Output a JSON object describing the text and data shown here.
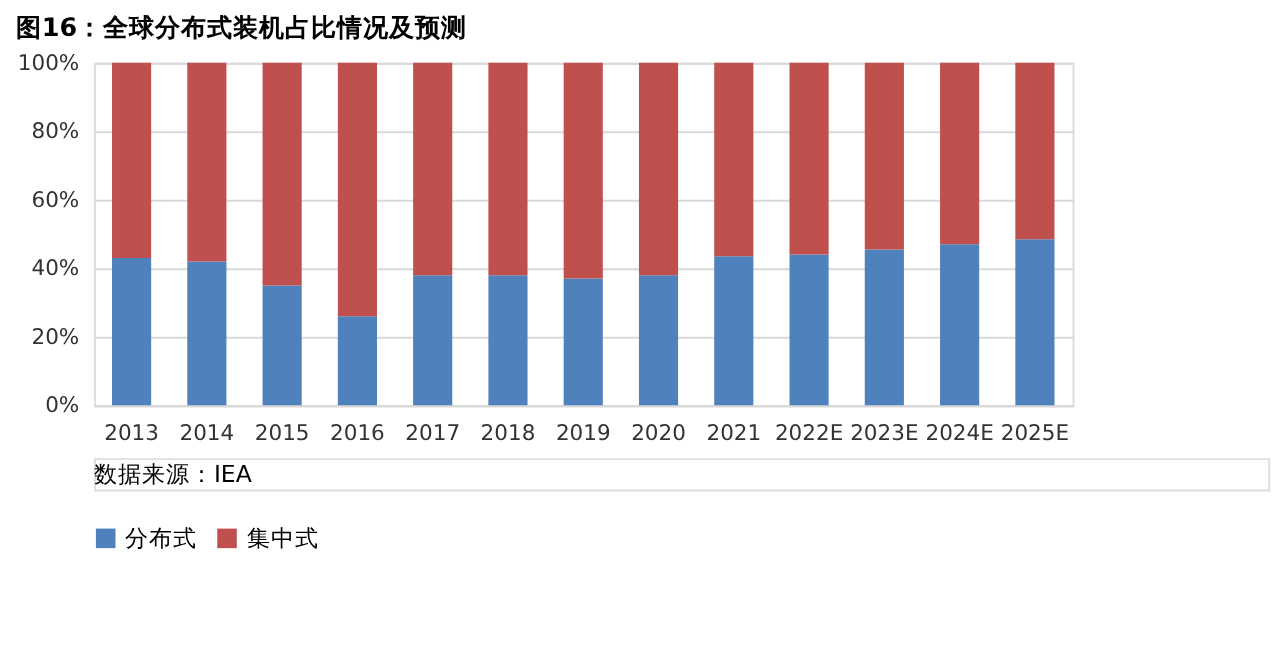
{
  "chart_data": {
    "type": "bar",
    "title": "图16：全球分布式装机占比情况及预测",
    "stacked": true,
    "categories": [
      "2013",
      "2014",
      "2015",
      "2016",
      "2017",
      "2018",
      "2019",
      "2020",
      "2021",
      "2022E",
      "2023E",
      "2024E",
      "2025E"
    ],
    "series": [
      {
        "name": "分布式",
        "color": "#4f81bd",
        "values": [
          43,
          42,
          35,
          26,
          38,
          38,
          37,
          38,
          43.5,
          44,
          45.5,
          47,
          48.5
        ]
      },
      {
        "name": "集中式",
        "color": "#c0504d",
        "values": [
          57,
          58,
          65,
          74,
          62,
          62,
          63,
          62,
          56.5,
          56,
          54.5,
          53,
          51.5
        ]
      }
    ],
    "ylim": [
      0,
      100
    ],
    "yticks": [
      {
        "value": 0,
        "label": "0%"
      },
      {
        "value": 20,
        "label": "20%"
      },
      {
        "value": 40,
        "label": "40%"
      },
      {
        "value": 60,
        "label": "60%"
      },
      {
        "value": 80,
        "label": "80%"
      },
      {
        "value": 100,
        "label": "100%"
      }
    ],
    "grid": "y",
    "legend": "bottom",
    "annotations": [
      "数据来源：IEA"
    ]
  }
}
